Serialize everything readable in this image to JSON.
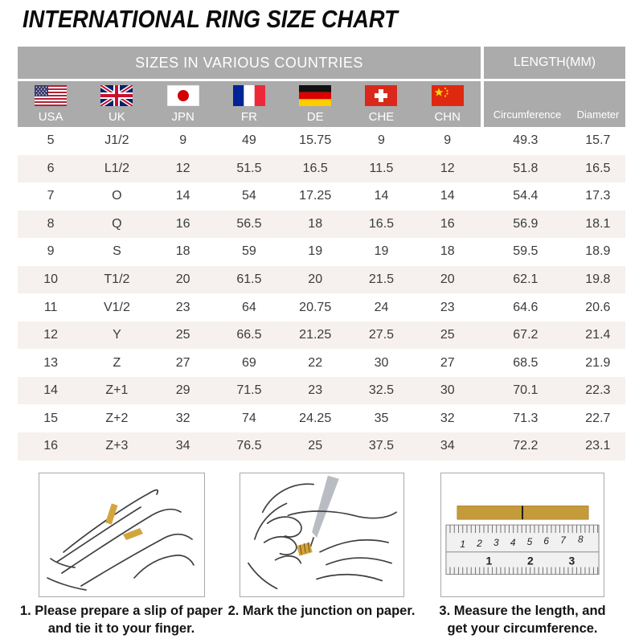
{
  "title": "INTERNATIONAL RING SIZE CHART",
  "chart_data": {
    "type": "table",
    "title": "INTERNATIONAL RING SIZE CHART",
    "column_groups": [
      {
        "label": "SIZES IN VARIOUS COUNTRIES",
        "span": 7
      },
      {
        "label": "LENGTH(MM)",
        "span": 2
      }
    ],
    "country_columns": [
      {
        "code": "USA",
        "flag": "usa-flag"
      },
      {
        "code": "UK",
        "flag": "uk-flag"
      },
      {
        "code": "JPN",
        "flag": "japan-flag"
      },
      {
        "code": "FR",
        "flag": "france-flag"
      },
      {
        "code": "DE",
        "flag": "germany-flag"
      },
      {
        "code": "CHE",
        "flag": "switzerland-flag"
      },
      {
        "code": "CHN",
        "flag": "china-flag"
      }
    ],
    "length_columns": [
      "Circumference",
      "Diameter"
    ],
    "rows": [
      [
        "5",
        "J1/2",
        "9",
        "49",
        "15.75",
        "9",
        "9",
        "49.3",
        "15.7"
      ],
      [
        "6",
        "L1/2",
        "12",
        "51.5",
        "16.5",
        "11.5",
        "12",
        "51.8",
        "16.5"
      ],
      [
        "7",
        "O",
        "14",
        "54",
        "17.25",
        "14",
        "14",
        "54.4",
        "17.3"
      ],
      [
        "8",
        "Q",
        "16",
        "56.5",
        "18",
        "16.5",
        "16",
        "56.9",
        "18.1"
      ],
      [
        "9",
        "S",
        "18",
        "59",
        "19",
        "19",
        "18",
        "59.5",
        "18.9"
      ],
      [
        "10",
        "T1/2",
        "20",
        "61.5",
        "20",
        "21.5",
        "20",
        "62.1",
        "19.8"
      ],
      [
        "11",
        "V1/2",
        "23",
        "64",
        "20.75",
        "24",
        "23",
        "64.6",
        "20.6"
      ],
      [
        "12",
        "Y",
        "25",
        "66.5",
        "21.25",
        "27.5",
        "25",
        "67.2",
        "21.4"
      ],
      [
        "13",
        "Z",
        "27",
        "69",
        "22",
        "30",
        "27",
        "68.5",
        "21.9"
      ],
      [
        "14",
        "Z+1",
        "29",
        "71.5",
        "23",
        "32.5",
        "30",
        "70.1",
        "22.3"
      ],
      [
        "15",
        "Z+2",
        "32",
        "74",
        "24.25",
        "35",
        "32",
        "71.3",
        "22.7"
      ],
      [
        "16",
        "Z+3",
        "34",
        "76.5",
        "25",
        "37.5",
        "34",
        "72.2",
        "23.1"
      ]
    ]
  },
  "steps": [
    {
      "line1": "1. Please prepare a slip of paper",
      "line2": "and tie it to your finger.",
      "illustration": "hand-with-paper-ring"
    },
    {
      "line1": "2. Mark the junction on paper.",
      "line2": "",
      "illustration": "marking-junction-with-pen"
    },
    {
      "line1": "3. Measure the length, and",
      "line2": "get your circumference.",
      "illustration": "ruler-measuring-strip"
    }
  ],
  "ruler": {
    "cm": [
      "1",
      "2",
      "3",
      "4",
      "5",
      "6",
      "7",
      "8"
    ],
    "inch": [
      "1",
      "2",
      "3"
    ]
  },
  "colors": {
    "header_gray": "#ABABAB",
    "row_alt": "#F6F1EE",
    "gold": "#C8A13C",
    "text_dark": "#3B3B3B"
  }
}
